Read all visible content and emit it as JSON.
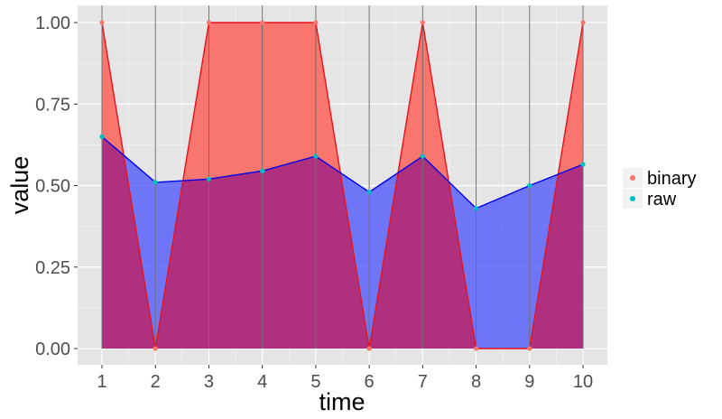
{
  "chart_data": {
    "type": "area",
    "xlabel": "time",
    "ylabel": "value",
    "x": [
      1,
      2,
      3,
      4,
      5,
      6,
      7,
      8,
      9,
      10
    ],
    "xticks": [
      "1",
      "2",
      "3",
      "4",
      "5",
      "6",
      "7",
      "8",
      "9",
      "10"
    ],
    "yticks": [
      "0.00",
      "0.25",
      "0.50",
      "0.75",
      "1.00"
    ],
    "ylim": [
      0,
      1
    ],
    "xlim": [
      1,
      10
    ],
    "grid": true,
    "legend_position": "right",
    "series": [
      {
        "name": "binary",
        "values": [
          1,
          0,
          1,
          1,
          1,
          0,
          1,
          0,
          0,
          1
        ],
        "line_color": "#e8121b",
        "fill_color": "#f8766d",
        "point_color": "#f8766d"
      },
      {
        "name": "raw",
        "values": [
          0.65,
          0.51,
          0.52,
          0.545,
          0.59,
          0.48,
          0.59,
          0.43,
          0.5,
          0.565
        ],
        "line_color": "#0000ee",
        "fill_color": "#3c46ff",
        "point_color": "#00bfc4"
      }
    ],
    "colors": {
      "panel_background": "#e5e5e5",
      "grid_line": "#ffffff",
      "vertical_marker": "#6e6e6e",
      "overlap_fill": "#b03080"
    }
  }
}
